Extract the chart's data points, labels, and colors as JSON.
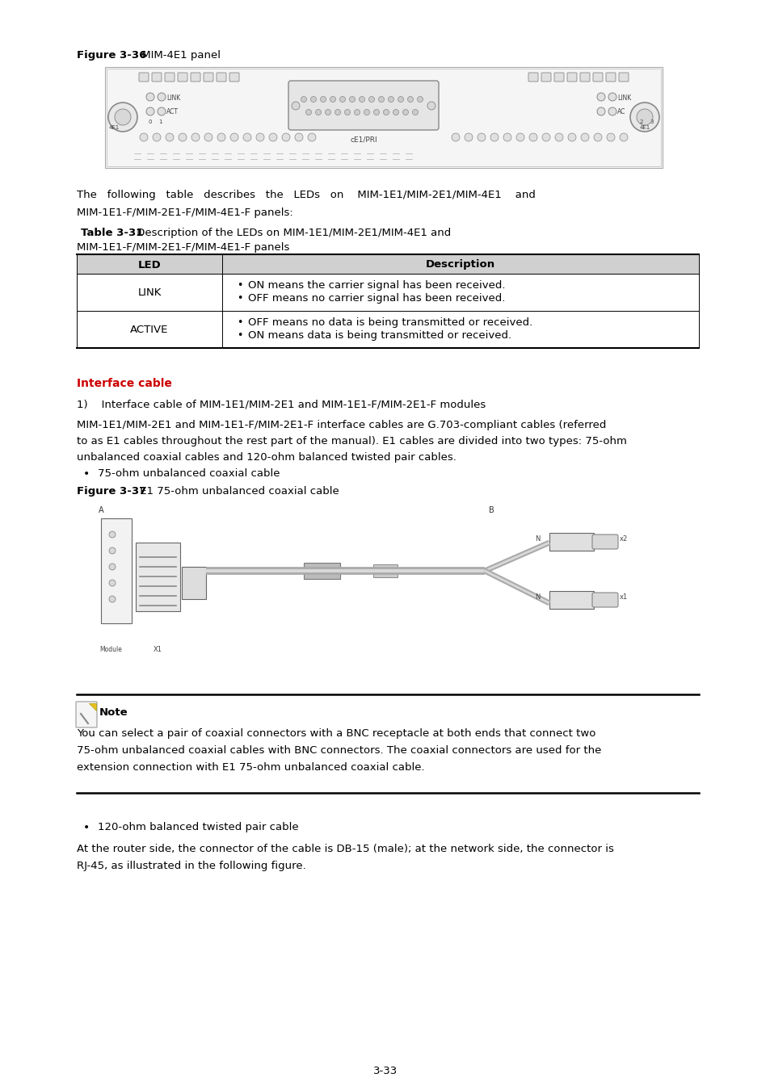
{
  "bg_color": "#ffffff",
  "page_number": "3-33",
  "red_color": "#cc0000",
  "figure_caption_bold": "Figure 3-36",
  "figure_caption_rest": " MIM-4E1 panel",
  "table_title_bold": "Table 3-31",
  "table_header_led": "LED",
  "table_header_desc": "Description",
  "table_row1_led": "LINK",
  "table_row1_desc1": "ON means the carrier signal has been received.",
  "table_row1_desc2": "OFF means no carrier signal has been received.",
  "table_row2_led": "ACTIVE",
  "table_row2_desc1": "OFF means no data is being transmitted or received.",
  "table_row2_desc2": "ON means data is being transmitted or received.",
  "section_header": "Interface cable",
  "numbered_item": "1)    Interface cable of MIM-1E1/MIM-2E1 and MIM-1E1-F/MIM-2E1-F modules",
  "bullet1": "75-ohm unbalanced coaxial cable",
  "fig37_bold": "Figure 3-37",
  "fig37_rest": " E1 75-ohm unbalanced coaxial cable",
  "note_title": "Note",
  "note_line1": "You can select a pair of coaxial connectors with a BNC receptacle at both ends that connect two",
  "note_line2": "75-ohm unbalanced coaxial cables with BNC connectors. The coaxial connectors are used for the",
  "note_line3": "extension connection with E1 75-ohm unbalanced coaxial cable.",
  "bullet2": "120-ohm balanced twisted pair cable",
  "last_para_line1": "At the router side, the connector of the cable is DB-15 (male); at the network side, the connector is",
  "last_para_line2": "RJ-45, as illustrated in the following figure."
}
